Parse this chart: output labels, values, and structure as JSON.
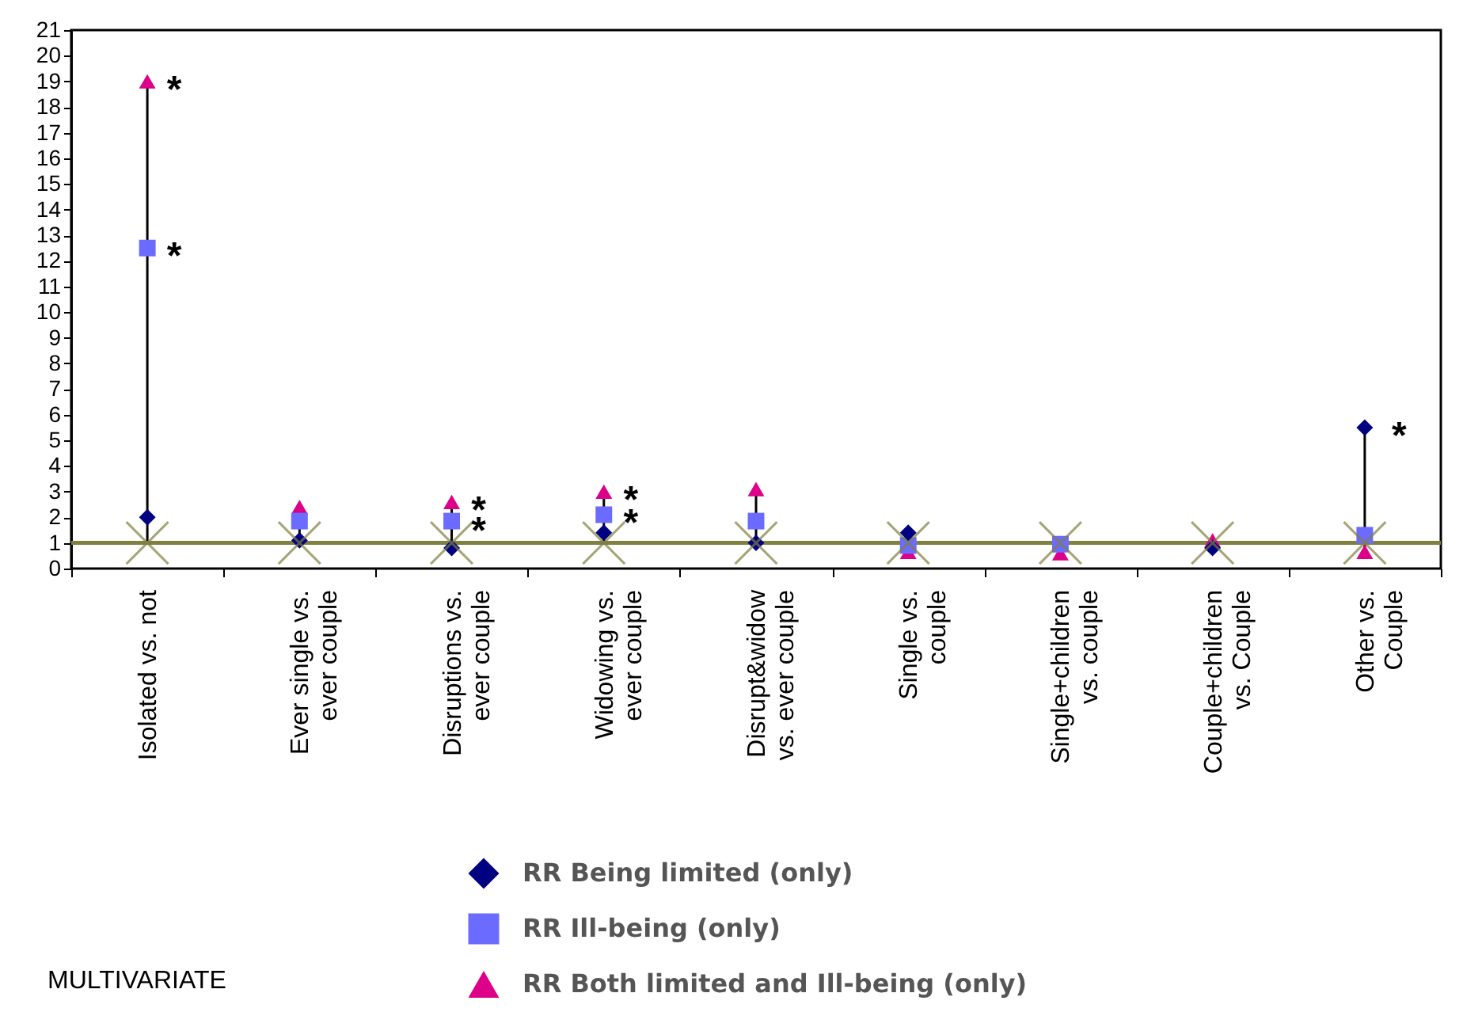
{
  "chart_data": {
    "type": "scatter",
    "categories": [
      "Isolated vs. not",
      "Ever single vs.\never couple",
      "Disruptions vs.\never couple",
      "Widowing vs.\never couple",
      "Disrupt&widow\nvs. ever couple",
      "Single vs.\ncouple",
      "Single+children\nvs. couple",
      "Couple+children\nvs. Couple",
      "Other vs.\nCouple"
    ],
    "series": [
      {
        "name": "RR Being limited (only)",
        "color": "#000080",
        "marker": "diamond",
        "values": [
          2,
          1.1,
          0.8,
          1.4,
          1.0,
          1.4,
          null,
          0.8,
          5.5
        ]
      },
      {
        "name": "RR Ill-being (only)",
        "color": "#6b6bff",
        "marker": "square",
        "values": [
          12.5,
          1.85,
          1.85,
          2.1,
          1.85,
          0.9,
          0.95,
          null,
          1.3
        ]
      },
      {
        "name": "RR Both limited and Ill-being (only)",
        "color": "#dd0088",
        "marker": "triangle",
        "values": [
          19,
          2.4,
          2.6,
          3.0,
          3.1,
          0.65,
          0.6,
          1.1,
          0.65
        ]
      },
      {
        "color": "#808040",
        "marker": "cross",
        "values": [
          1,
          1,
          1,
          1,
          1,
          1,
          1,
          1,
          1
        ]
      }
    ],
    "ylim": [
      0,
      21
    ],
    "yticks": [
      0,
      1,
      2,
      3,
      4,
      5,
      6,
      7,
      8,
      9,
      10,
      11,
      12,
      13,
      14,
      15,
      16,
      17,
      18,
      19,
      20,
      21
    ],
    "ref_lines": [
      {
        "axis": "y",
        "value": 1,
        "color": "#808040"
      }
    ],
    "legend": "bottom",
    "grid": false,
    "annotations": [
      {
        "text": "*",
        "x": "Isolated vs. not",
        "y": 19
      },
      {
        "text": "*",
        "x": "Isolated vs. not",
        "y": 12.5
      },
      {
        "text": "*",
        "x": "Disruptions vs.\never couple",
        "y": 2.6
      },
      {
        "text": "*",
        "x": "Disruptions vs.\never couple",
        "y": 1.8
      },
      {
        "text": "*",
        "x": "Widowing vs.\never couple",
        "y": 3.0
      },
      {
        "text": "*",
        "x": "Widowing vs.\never couple",
        "y": 2.1
      },
      "*",
      "MULTIVARIATE"
    ]
  }
}
